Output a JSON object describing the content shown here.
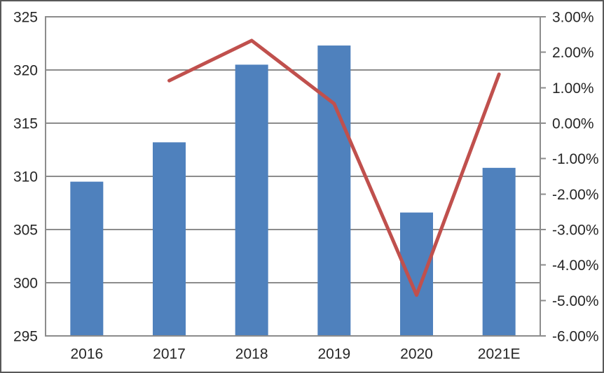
{
  "chart_data": {
    "type": "bar",
    "subtype": "combo-bar-line-dual-axis",
    "title": "",
    "legend": "none",
    "grid": "horizontal-major-left-axis",
    "categories": [
      "2016",
      "2017",
      "2018",
      "2019",
      "2020",
      "2021E"
    ],
    "series": [
      {
        "name": "bar-series",
        "type": "bar",
        "axis": "left",
        "color": "#4F81BD",
        "values": [
          309.5,
          313.2,
          320.5,
          322.3,
          306.6,
          310.8
        ]
      },
      {
        "name": "line-series",
        "type": "line",
        "axis": "right",
        "color": "#C0504D",
        "values": [
          null,
          1.2,
          2.33,
          0.55,
          -4.85,
          1.38
        ]
      }
    ],
    "left_axis": {
      "min": 295,
      "max": 325,
      "ticks": [
        325,
        320,
        315,
        310,
        305,
        300,
        295
      ],
      "tick_labels": [
        "325",
        "320",
        "315",
        "310",
        "305",
        "300",
        "295"
      ]
    },
    "right_axis": {
      "min": -6,
      "max": 3,
      "ticks": [
        3,
        2,
        1,
        0,
        -1,
        -2,
        -3,
        -4,
        -5,
        -6
      ],
      "tick_labels": [
        "3.00%",
        "2.00%",
        "1.00%",
        "0.00%",
        "-1.00%",
        "-2.00%",
        "-3.00%",
        "-4.00%",
        "-5.00%",
        "-6.00%"
      ]
    }
  },
  "colors": {
    "bar": "#4F81BD",
    "line": "#C0504D",
    "gridline": "#8C8C8C",
    "plot_border": "#8C8C8C",
    "outer_border": "#595959",
    "text": "#262626",
    "background": "#FFFFFF"
  }
}
